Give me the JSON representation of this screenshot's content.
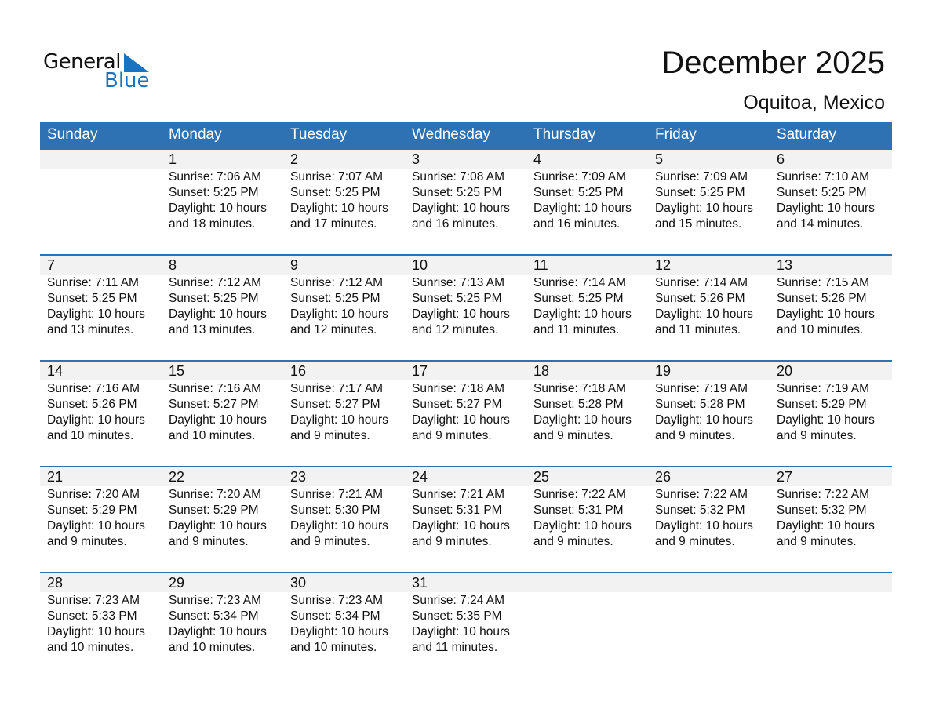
{
  "logo": {
    "general": "General",
    "blue": "Blue",
    "accent": "#1a73c0"
  },
  "title": "December 2025",
  "location": "Oquitoa, Mexico",
  "header_color": "#2e72b4",
  "days": [
    "Sunday",
    "Monday",
    "Tuesday",
    "Wednesday",
    "Thursday",
    "Friday",
    "Saturday"
  ],
  "weeks": [
    [
      null,
      {
        "d": "1",
        "sr": "Sunrise: 7:06 AM",
        "ss": "Sunset: 5:25 PM",
        "dl": "Daylight: 10 hours",
        "m": "and 18 minutes."
      },
      {
        "d": "2",
        "sr": "Sunrise: 7:07 AM",
        "ss": "Sunset: 5:25 PM",
        "dl": "Daylight: 10 hours",
        "m": "and 17 minutes."
      },
      {
        "d": "3",
        "sr": "Sunrise: 7:08 AM",
        "ss": "Sunset: 5:25 PM",
        "dl": "Daylight: 10 hours",
        "m": "and 16 minutes."
      },
      {
        "d": "4",
        "sr": "Sunrise: 7:09 AM",
        "ss": "Sunset: 5:25 PM",
        "dl": "Daylight: 10 hours",
        "m": "and 16 minutes."
      },
      {
        "d": "5",
        "sr": "Sunrise: 7:09 AM",
        "ss": "Sunset: 5:25 PM",
        "dl": "Daylight: 10 hours",
        "m": "and 15 minutes."
      },
      {
        "d": "6",
        "sr": "Sunrise: 7:10 AM",
        "ss": "Sunset: 5:25 PM",
        "dl": "Daylight: 10 hours",
        "m": "and 14 minutes."
      }
    ],
    [
      {
        "d": "7",
        "sr": "Sunrise: 7:11 AM",
        "ss": "Sunset: 5:25 PM",
        "dl": "Daylight: 10 hours",
        "m": "and 13 minutes."
      },
      {
        "d": "8",
        "sr": "Sunrise: 7:12 AM",
        "ss": "Sunset: 5:25 PM",
        "dl": "Daylight: 10 hours",
        "m": "and 13 minutes."
      },
      {
        "d": "9",
        "sr": "Sunrise: 7:12 AM",
        "ss": "Sunset: 5:25 PM",
        "dl": "Daylight: 10 hours",
        "m": "and 12 minutes."
      },
      {
        "d": "10",
        "sr": "Sunrise: 7:13 AM",
        "ss": "Sunset: 5:25 PM",
        "dl": "Daylight: 10 hours",
        "m": "and 12 minutes."
      },
      {
        "d": "11",
        "sr": "Sunrise: 7:14 AM",
        "ss": "Sunset: 5:25 PM",
        "dl": "Daylight: 10 hours",
        "m": "and 11 minutes."
      },
      {
        "d": "12",
        "sr": "Sunrise: 7:14 AM",
        "ss": "Sunset: 5:26 PM",
        "dl": "Daylight: 10 hours",
        "m": "and 11 minutes."
      },
      {
        "d": "13",
        "sr": "Sunrise: 7:15 AM",
        "ss": "Sunset: 5:26 PM",
        "dl": "Daylight: 10 hours",
        "m": "and 10 minutes."
      }
    ],
    [
      {
        "d": "14",
        "sr": "Sunrise: 7:16 AM",
        "ss": "Sunset: 5:26 PM",
        "dl": "Daylight: 10 hours",
        "m": "and 10 minutes."
      },
      {
        "d": "15",
        "sr": "Sunrise: 7:16 AM",
        "ss": "Sunset: 5:27 PM",
        "dl": "Daylight: 10 hours",
        "m": "and 10 minutes."
      },
      {
        "d": "16",
        "sr": "Sunrise: 7:17 AM",
        "ss": "Sunset: 5:27 PM",
        "dl": "Daylight: 10 hours",
        "m": "and 9 minutes."
      },
      {
        "d": "17",
        "sr": "Sunrise: 7:18 AM",
        "ss": "Sunset: 5:27 PM",
        "dl": "Daylight: 10 hours",
        "m": "and 9 minutes."
      },
      {
        "d": "18",
        "sr": "Sunrise: 7:18 AM",
        "ss": "Sunset: 5:28 PM",
        "dl": "Daylight: 10 hours",
        "m": "and 9 minutes."
      },
      {
        "d": "19",
        "sr": "Sunrise: 7:19 AM",
        "ss": "Sunset: 5:28 PM",
        "dl": "Daylight: 10 hours",
        "m": "and 9 minutes."
      },
      {
        "d": "20",
        "sr": "Sunrise: 7:19 AM",
        "ss": "Sunset: 5:29 PM",
        "dl": "Daylight: 10 hours",
        "m": "and 9 minutes."
      }
    ],
    [
      {
        "d": "21",
        "sr": "Sunrise: 7:20 AM",
        "ss": "Sunset: 5:29 PM",
        "dl": "Daylight: 10 hours",
        "m": "and 9 minutes."
      },
      {
        "d": "22",
        "sr": "Sunrise: 7:20 AM",
        "ss": "Sunset: 5:29 PM",
        "dl": "Daylight: 10 hours",
        "m": "and 9 minutes."
      },
      {
        "d": "23",
        "sr": "Sunrise: 7:21 AM",
        "ss": "Sunset: 5:30 PM",
        "dl": "Daylight: 10 hours",
        "m": "and 9 minutes."
      },
      {
        "d": "24",
        "sr": "Sunrise: 7:21 AM",
        "ss": "Sunset: 5:31 PM",
        "dl": "Daylight: 10 hours",
        "m": "and 9 minutes."
      },
      {
        "d": "25",
        "sr": "Sunrise: 7:22 AM",
        "ss": "Sunset: 5:31 PM",
        "dl": "Daylight: 10 hours",
        "m": "and 9 minutes."
      },
      {
        "d": "26",
        "sr": "Sunrise: 7:22 AM",
        "ss": "Sunset: 5:32 PM",
        "dl": "Daylight: 10 hours",
        "m": "and 9 minutes."
      },
      {
        "d": "27",
        "sr": "Sunrise: 7:22 AM",
        "ss": "Sunset: 5:32 PM",
        "dl": "Daylight: 10 hours",
        "m": "and 9 minutes."
      }
    ],
    [
      {
        "d": "28",
        "sr": "Sunrise: 7:23 AM",
        "ss": "Sunset: 5:33 PM",
        "dl": "Daylight: 10 hours",
        "m": "and 10 minutes."
      },
      {
        "d": "29",
        "sr": "Sunrise: 7:23 AM",
        "ss": "Sunset: 5:34 PM",
        "dl": "Daylight: 10 hours",
        "m": "and 10 minutes."
      },
      {
        "d": "30",
        "sr": "Sunrise: 7:23 AM",
        "ss": "Sunset: 5:34 PM",
        "dl": "Daylight: 10 hours",
        "m": "and 10 minutes."
      },
      {
        "d": "31",
        "sr": "Sunrise: 7:24 AM",
        "ss": "Sunset: 5:35 PM",
        "dl": "Daylight: 10 hours",
        "m": "and 11 minutes."
      },
      null,
      null,
      null
    ]
  ]
}
